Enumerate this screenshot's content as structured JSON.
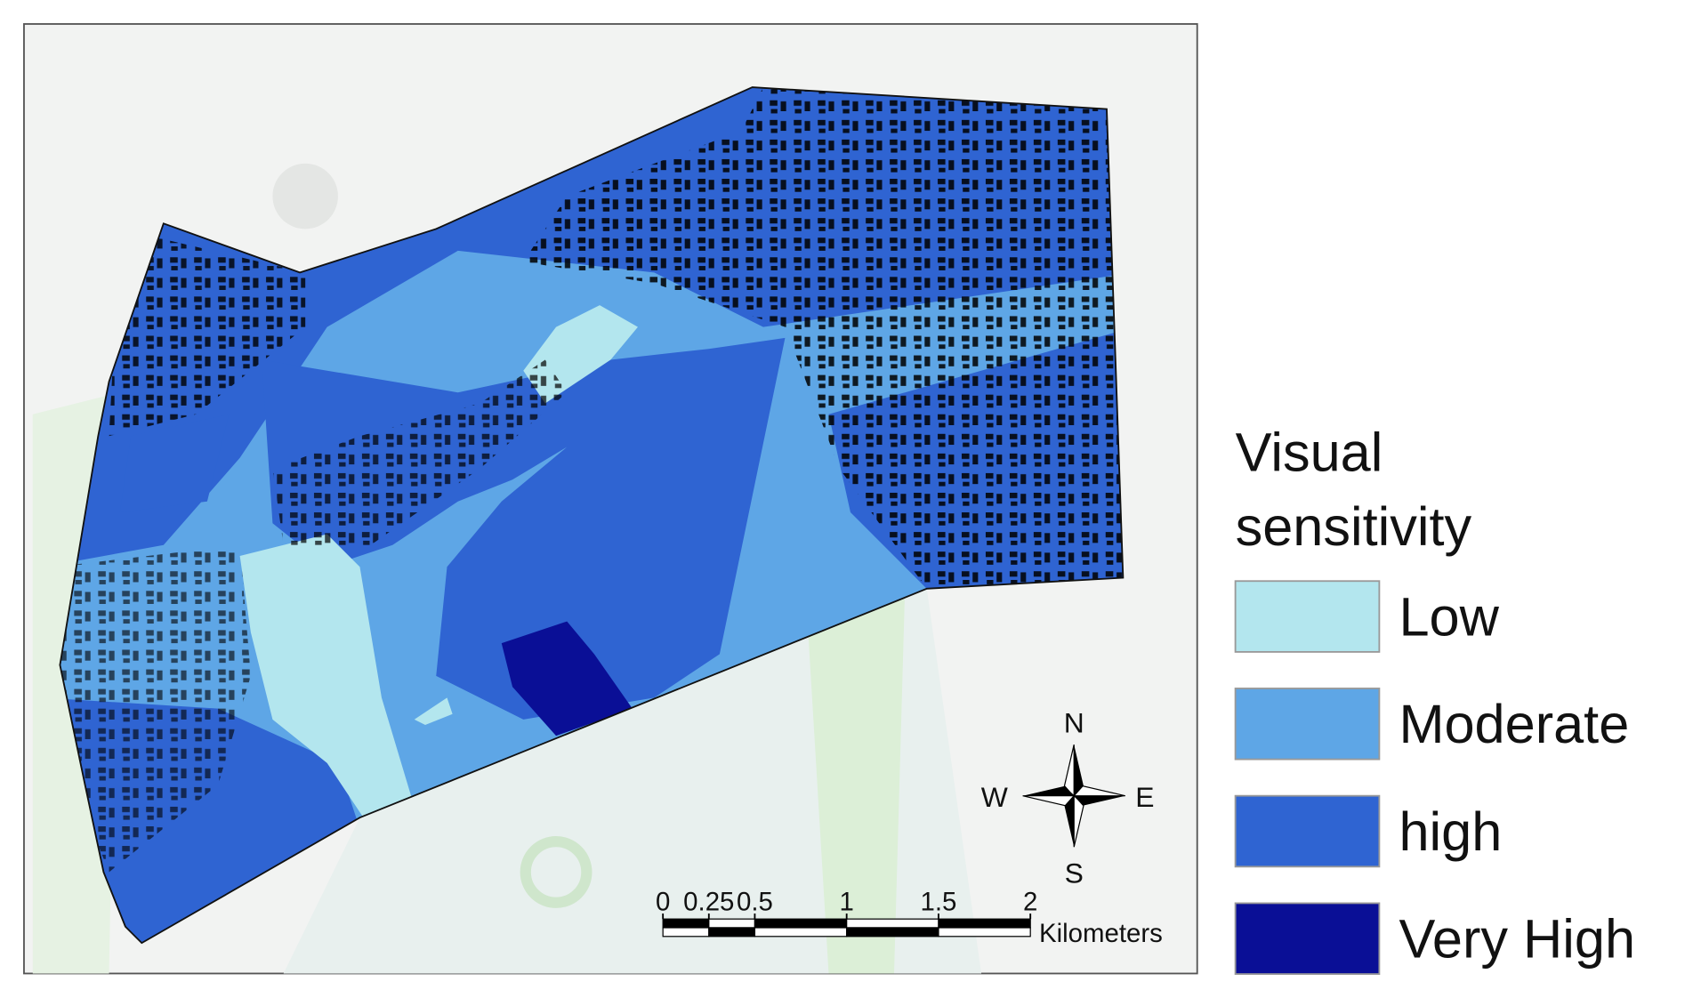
{
  "legend": {
    "title_lines": [
      "Visual",
      "sensitivity"
    ],
    "items": [
      {
        "label": "Low",
        "color": "#b3e6ee"
      },
      {
        "label": "Moderate",
        "color": "#5ea6e6"
      },
      {
        "label": "high",
        "color": "#2f64d2"
      },
      {
        "label": "Very High",
        "color": "#0a0f96"
      }
    ]
  },
  "compass": {
    "north": "N",
    "east": "E",
    "south": "S",
    "west": "W"
  },
  "scale_bar": {
    "ticks": [
      0,
      0.25,
      0.5,
      1,
      1.5,
      2
    ],
    "unit": "Kilometers"
  }
}
